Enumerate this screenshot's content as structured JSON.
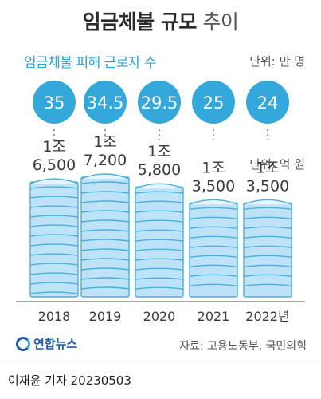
{
  "title_bold": "임금체불 규모",
  "title_light": "추이",
  "subtitle": "임금체불 피해 근로자 수",
  "unit_workers": "단위: 만 명",
  "unit_amount": "단위: 억 원",
  "source": "자료: 고용노동부, 국민의힘",
  "logo_text": "연합뉴스",
  "reporter": "이재윤 기자  20230503",
  "colors": {
    "circle": "#35a8db",
    "stack": "#bfe3f6",
    "stack_line": "#4aaedd"
  },
  "chart_data": {
    "type": "bar",
    "categories": [
      "2018",
      "2019",
      "2020",
      "2021",
      "2022년"
    ],
    "series": [
      {
        "name": "임금체불 피해 근로자 수",
        "unit": "만 명",
        "values": [
          35,
          34.5,
          29.5,
          25,
          24
        ]
      },
      {
        "name": "",
        "unit": "억 원",
        "values": [
          16500,
          17200,
          15800,
          13500,
          13500
        ]
      }
    ],
    "worker_labels": [
      "35",
      "34.5",
      "29.5",
      "25",
      "24"
    ],
    "amount_labels": [
      [
        "1조",
        "6,500"
      ],
      [
        "1조",
        "7,200"
      ],
      [
        "1조",
        "5,800"
      ],
      [
        "1조",
        "3,500"
      ],
      [
        "1조",
        "3,500"
      ]
    ]
  }
}
